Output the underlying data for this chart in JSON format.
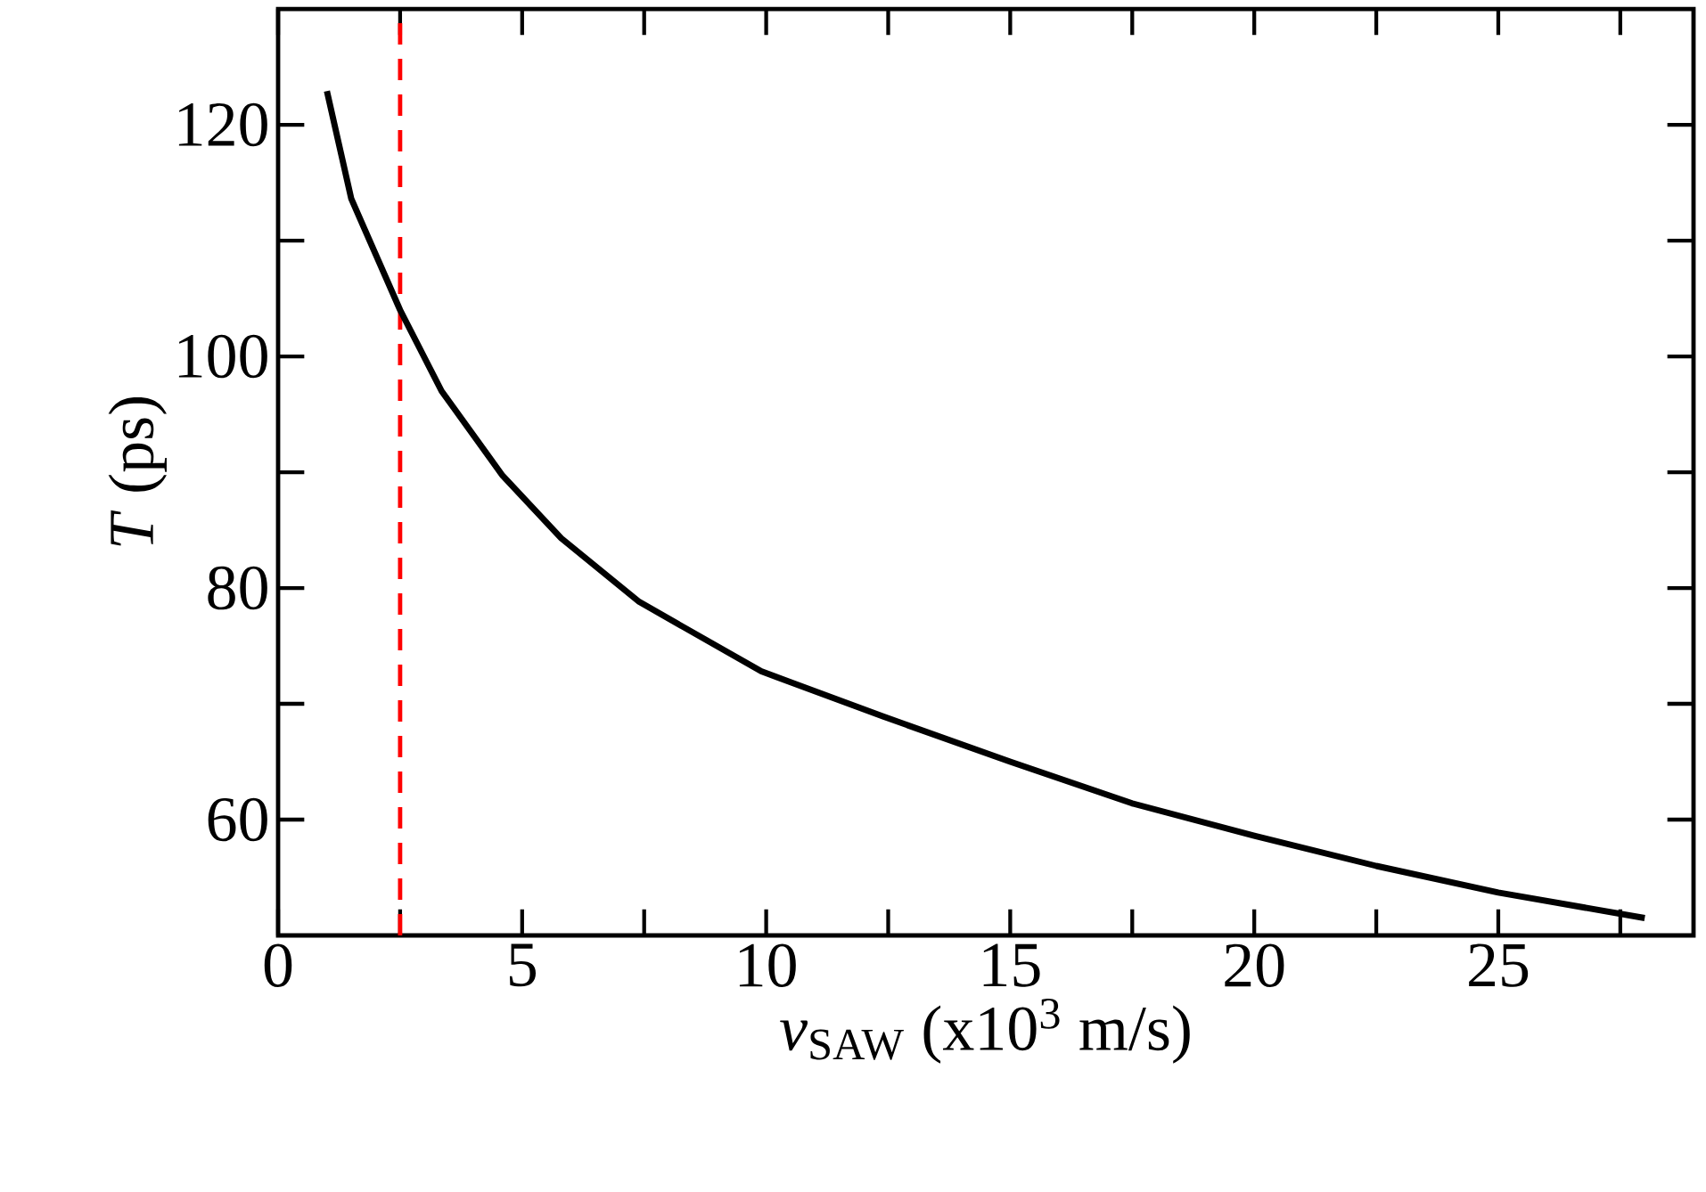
{
  "chart_data": {
    "type": "line",
    "xlabel": "*v*$_{SAW}$ (x10$^{3}$ m/s)",
    "ylabel": "*T* (ps)",
    "xlim": [
      0,
      29
    ],
    "ylim": [
      50,
      130
    ],
    "xticks": [
      0,
      {
        "value": 2.5,
        "label": null
      },
      5,
      {
        "value": 7.5,
        "label": null
      },
      10,
      {
        "value": 12.5,
        "label": null
      },
      15,
      {
        "value": 17.5,
        "label": null
      },
      20,
      {
        "value": 22.5,
        "label": null
      },
      25,
      {
        "value": 27.5,
        "label": null
      }
    ],
    "yticks": [
      60,
      {
        "value": 70,
        "label": null
      },
      80,
      {
        "value": 90,
        "label": null
      },
      100,
      {
        "value": 110,
        "label": null
      },
      120
    ],
    "grid": false,
    "marker": "none",
    "line_style": "solid",
    "series": [
      {
        "color": "#000000",
        "x": [
          1.0,
          1.5,
          2.5,
          3.35,
          4.6,
          5.8,
          7.4,
          9.9,
          12.4,
          15.0,
          17.5,
          20.0,
          22.5,
          25.0,
          28.0
        ],
        "values": [
          122.9,
          113.6,
          104.0,
          97.0,
          89.7,
          84.3,
          78.8,
          72.8,
          68.9,
          65.0,
          61.4,
          58.6,
          56.0,
          53.7,
          51.5
        ]
      }
    ],
    "ref_lines": [
      {
        "axis": "x",
        "value": 2.5,
        "color": "#ff0000",
        "line_style": "dashed"
      }
    ]
  }
}
